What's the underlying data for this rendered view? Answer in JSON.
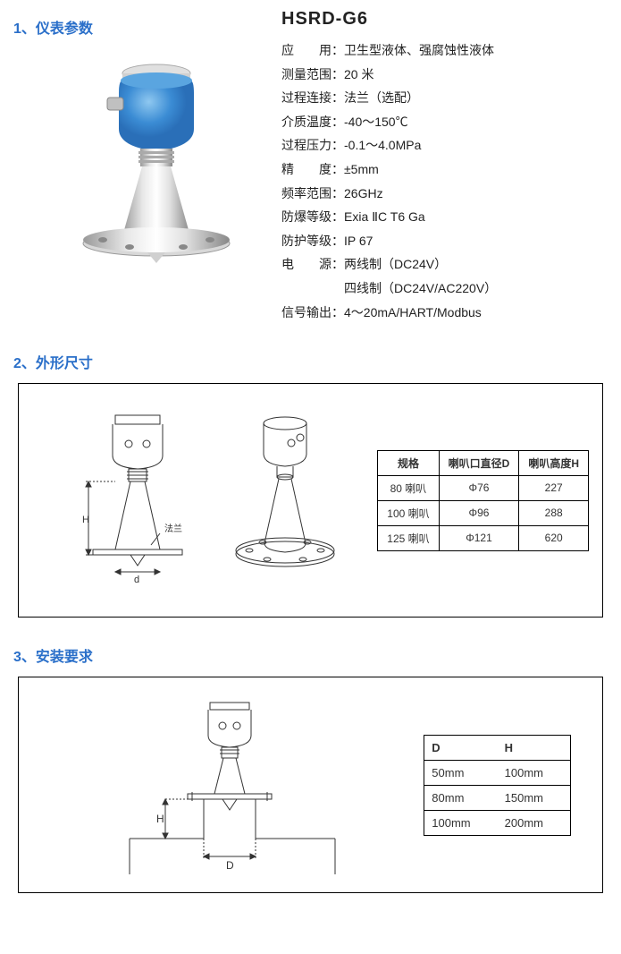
{
  "section1": {
    "title": "1、仪表参数",
    "model": "HSRD-G6",
    "specs": [
      {
        "label": "应　　用：",
        "value": "卫生型液体、强腐蚀性液体"
      },
      {
        "label": "测量范围：",
        "value": "20 米"
      },
      {
        "label": "过程连接：",
        "value": "法兰（选配）"
      },
      {
        "label": "介质温度：",
        "value": "-40～150℃"
      },
      {
        "label": "过程压力：",
        "value": "-0.1～4.0MPa"
      },
      {
        "label": "精　　度：",
        "value": "±5mm"
      },
      {
        "label": "频率范围：",
        "value": "26GHz"
      },
      {
        "label": "防爆等级：",
        "value": "Exia ⅡC T6 Ga"
      },
      {
        "label": "防护等级：",
        "value": "IP 67"
      },
      {
        "label": "电　　源：",
        "value": "两线制（DC24V）"
      },
      {
        "label": "　　　　　",
        "value": "四线制（DC24V/AC220V）"
      },
      {
        "label": "信号输出：",
        "value": "4～20mA/HART/Modbus"
      }
    ],
    "product_colors": {
      "housing": "#3b8cd4",
      "housing_highlight": "#6bb0e8",
      "metal": "#c8c8c8",
      "metal_light": "#e0e0e0",
      "metal_dark": "#999"
    }
  },
  "section2": {
    "title": "2、外形尺寸",
    "labels": {
      "d": "d",
      "H": "H",
      "flange": "法兰"
    },
    "table": {
      "headers": [
        "规格",
        "喇叭口直径D",
        "喇叭高度H"
      ],
      "rows": [
        [
          "80 喇叭",
          "Φ76",
          "227"
        ],
        [
          "100 喇叭",
          "Φ96",
          "288"
        ],
        [
          "125 喇叭",
          "Φ121",
          "620"
        ]
      ]
    }
  },
  "section3": {
    "title": "3、安装要求",
    "labels": {
      "D": "D",
      "H": "H"
    },
    "table": {
      "headers": [
        "D",
        "H"
      ],
      "rows": [
        [
          "50mm",
          "100mm"
        ],
        [
          "80mm",
          "150mm"
        ],
        [
          "100mm",
          "200mm"
        ]
      ]
    }
  },
  "colors": {
    "title": "#2a6fc9",
    "text": "#222222",
    "border": "#000000",
    "diagram_stroke": "#333333"
  }
}
